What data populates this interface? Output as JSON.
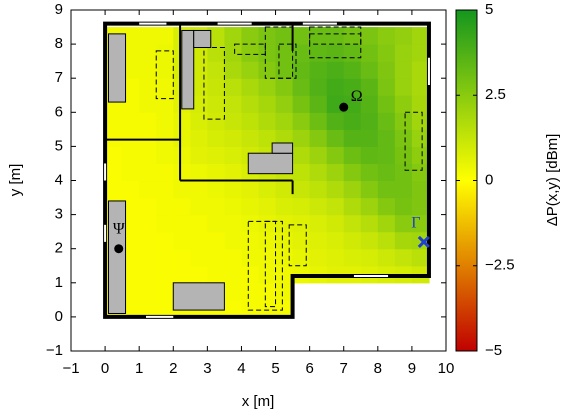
{
  "chart_data": {
    "type": "heatmap",
    "xlabel": "x [m]",
    "ylabel": "y [m]",
    "colorbar_label": "ΔP(x,y) [dBm]",
    "xlim": [
      -1,
      10
    ],
    "ylim": [
      -1,
      9
    ],
    "xticks": [
      {
        "value": -1,
        "label": "−1"
      },
      0,
      1,
      2,
      3,
      4,
      5,
      6,
      7,
      8,
      9,
      10
    ],
    "yticks": [
      {
        "value": -1,
        "label": "−1"
      },
      0,
      1,
      2,
      3,
      4,
      5,
      6,
      7,
      8,
      9
    ],
    "clim": [
      -5,
      5
    ],
    "cticks": [
      5,
      2.5,
      0,
      {
        "value": -2.5,
        "label": "−2.5"
      },
      {
        "value": -5,
        "label": "−5"
      }
    ],
    "colors": [
      "#c00000",
      "#ffff00",
      "#14961e"
    ],
    "xbins": [
      0,
      0.5,
      1,
      1.5,
      2,
      2.5,
      3,
      3.5,
      4,
      4.5,
      5,
      5.5,
      6,
      6.5,
      7,
      7.5,
      8,
      8.5,
      9,
      9.5
    ],
    "ybins": [
      0,
      0.5,
      1,
      1.5,
      2,
      2.5,
      3,
      3.5,
      4,
      4.5,
      5,
      5.5,
      6,
      6.5,
      7,
      7.5,
      8,
      8.5
    ],
    "values": [
      [
        0.1,
        0.1,
        0.1,
        0.1,
        0.1,
        0.1,
        0.1,
        0.1,
        0.2,
        0.2,
        0.2,
        null,
        null,
        null,
        null,
        null,
        null,
        null,
        null
      ],
      [
        0.1,
        0.1,
        0.1,
        0.1,
        0.1,
        0.1,
        0.1,
        0.2,
        0.2,
        0.2,
        0.3,
        null,
        null,
        null,
        null,
        null,
        null,
        null,
        null
      ],
      [
        0.1,
        0.1,
        0.1,
        0.1,
        0.1,
        0.1,
        0.2,
        0.2,
        0.2,
        0.3,
        0.3,
        0.4,
        0.5,
        0.6,
        0.6,
        0.7,
        0.8,
        0.9,
        1.0
      ],
      [
        0.1,
        0.1,
        0.1,
        0.1,
        0.1,
        0.2,
        0.2,
        0.2,
        0.3,
        0.3,
        0.4,
        0.5,
        0.6,
        0.7,
        0.8,
        0.9,
        1.1,
        1.3,
        1.5
      ],
      [
        0.1,
        0.1,
        0.1,
        0.1,
        0.2,
        0.2,
        0.2,
        0.3,
        0.3,
        0.4,
        0.5,
        0.6,
        0.7,
        0.8,
        1.0,
        1.2,
        1.5,
        1.9,
        2.0
      ],
      [
        0.1,
        0.1,
        0.1,
        0.2,
        0.2,
        0.2,
        0.3,
        0.3,
        0.4,
        0.5,
        0.6,
        0.7,
        0.8,
        1.0,
        1.3,
        1.6,
        2.0,
        2.5,
        2.5
      ],
      [
        0.1,
        0.1,
        0.1,
        0.2,
        0.2,
        0.3,
        0.3,
        0.4,
        0.5,
        0.6,
        0.8,
        0.9,
        1.1,
        1.3,
        1.7,
        2.1,
        2.6,
        2.9,
        2.7
      ],
      [
        0.1,
        0.1,
        0.2,
        0.2,
        0.3,
        0.3,
        0.4,
        0.5,
        0.6,
        0.8,
        1.0,
        1.2,
        1.4,
        1.7,
        2.1,
        2.6,
        3.0,
        3.0,
        2.7
      ],
      [
        0.1,
        0.2,
        0.2,
        0.2,
        0.3,
        0.4,
        0.5,
        0.6,
        0.8,
        1.0,
        1.2,
        1.4,
        1.7,
        2.1,
        2.6,
        3.0,
        3.2,
        3.0,
        2.6
      ],
      [
        0.1,
        0.2,
        0.2,
        0.3,
        0.4,
        0.6,
        0.7,
        0.8,
        1.0,
        1.2,
        1.4,
        1.7,
        2.1,
        2.6,
        3.1,
        3.4,
        3.3,
        2.9,
        2.4
      ],
      [
        0.2,
        0.2,
        0.2,
        0.3,
        0.5,
        0.7,
        0.9,
        1.0,
        1.2,
        1.4,
        1.7,
        2.1,
        2.6,
        3.2,
        3.6,
        3.6,
        3.3,
        2.8,
        2.2
      ],
      [
        0.2,
        0.2,
        0.2,
        0.3,
        0.5,
        0.8,
        1.0,
        1.2,
        1.4,
        1.7,
        2.0,
        2.5,
        3.1,
        3.7,
        3.9,
        3.7,
        3.2,
        2.6,
        2.0
      ],
      [
        0.2,
        0.2,
        0.3,
        0.3,
        0.6,
        0.9,
        1.1,
        1.3,
        1.6,
        1.9,
        2.3,
        2.9,
        3.5,
        4.1,
        4.0,
        3.6,
        3.0,
        2.4,
        1.9
      ],
      [
        0.2,
        0.2,
        0.3,
        0.3,
        0.7,
        1.0,
        1.2,
        1.5,
        1.8,
        2.2,
        2.6,
        3.2,
        3.7,
        4.0,
        3.9,
        3.5,
        2.8,
        2.2,
        1.8
      ],
      [
        0.2,
        0.3,
        0.3,
        0.4,
        0.8,
        1.0,
        1.3,
        1.8,
        2.2,
        2.6,
        3.0,
        3.3,
        3.6,
        3.8,
        3.6,
        3.2,
        2.7,
        2.2,
        1.8
      ],
      [
        0.3,
        0.3,
        0.3,
        0.4,
        0.8,
        1.0,
        1.5,
        2.0,
        2.5,
        2.8,
        3.0,
        3.2,
        3.4,
        3.5,
        3.3,
        3.0,
        2.6,
        2.2,
        2.0
      ],
      [
        0.3,
        0.3,
        0.3,
        0.3,
        0.8,
        1.0,
        1.5,
        2.0,
        2.5,
        2.8,
        3.0,
        3.0,
        3.2,
        3.2,
        3.0,
        2.8,
        2.5,
        2.3,
        2.0
      ]
    ],
    "points": [
      {
        "label": "Ω",
        "x": 7,
        "y": 6.15,
        "color": "#000000"
      },
      {
        "label": "Ψ",
        "x": 0.4,
        "y": 2.0,
        "color": "#000000"
      },
      {
        "label": "Γ",
        "x": 9.35,
        "y": 2.2,
        "color": "#1f3fd0"
      }
    ]
  }
}
